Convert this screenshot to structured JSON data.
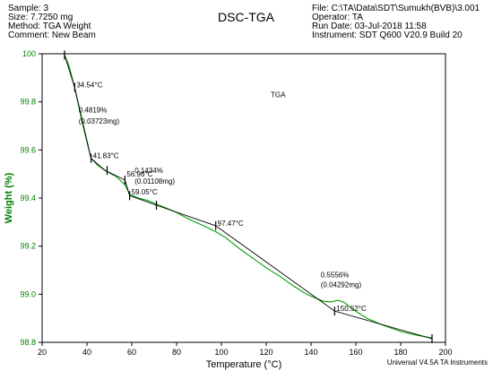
{
  "header": {
    "left": [
      "Sample: 3",
      "Size:  7.7250 mg",
      "Method: TGA Weight",
      "Comment: New Beam"
    ],
    "title": "DSC-TGA",
    "right": [
      "File: C:\\TA\\Data\\SDT\\Sumukh(BVB)\\3.001",
      "Operator: TA",
      "Run Date: 03-Jul-2018 11:58",
      "Instrument: SDT Q600 V20.9 Build 20"
    ]
  },
  "footer": "Universal V4.5A TA Instruments",
  "colors": {
    "axis_label": "#008000",
    "curve": "#00a000",
    "fit_line": "#000000"
  },
  "chart_data": {
    "type": "line",
    "title": "",
    "xlabel": "Temperature (°C)",
    "ylabel": "Weight (%)",
    "xlim": [
      20,
      200
    ],
    "ylim": [
      98.8,
      100
    ],
    "xticks": [
      "20",
      "40",
      "60",
      "80",
      "100",
      "120",
      "140",
      "160",
      "180",
      "200"
    ],
    "yticks": [
      "98.8",
      "99.0",
      "99.2",
      "99.4",
      "99.6",
      "99.8",
      "100"
    ],
    "grid": false,
    "legend": "none",
    "series": [
      {
        "name": "TGA",
        "x": [
          30.0,
          32.0,
          34.5,
          38.0,
          41.8,
          45.0,
          49.0,
          53.0,
          57.0,
          59.1,
          63.0,
          67.0,
          71.0,
          75.0,
          80.0,
          86.0,
          92.0,
          97.5,
          102.0,
          108.0,
          114.0,
          120.0,
          126.0,
          132.0,
          138.0,
          143.0,
          146.0,
          149.0,
          152.0,
          155.0,
          159.0,
          165.0,
          172.0,
          180.0,
          187.0,
          194.0
        ],
        "y": [
          99.995,
          99.95,
          99.86,
          99.71,
          99.565,
          99.535,
          99.51,
          99.49,
          99.455,
          99.415,
          99.4,
          99.39,
          99.375,
          99.36,
          99.34,
          99.31,
          99.285,
          99.26,
          99.235,
          99.19,
          99.15,
          99.11,
          99.075,
          99.035,
          99.0,
          98.98,
          98.97,
          98.968,
          98.975,
          98.965,
          98.935,
          98.9,
          98.872,
          98.845,
          98.83,
          98.818
        ]
      }
    ],
    "annotations": [
      {
        "text": "TGA",
        "x": 122,
        "y": 99.82
      },
      {
        "text": "34.54°C",
        "x": 34.54,
        "y": 99.86
      },
      {
        "text": "0.4819%",
        "x": 35.5,
        "y": 99.755
      },
      {
        "text": "(0.03723mg)",
        "x": 35.5,
        "y": 99.71
      },
      {
        "text": "41.83°C",
        "x": 41.83,
        "y": 99.565
      },
      {
        "text": "56.96°C",
        "x": 56.96,
        "y": 99.49
      },
      {
        "text": "0.1434%",
        "x": 60.5,
        "y": 99.505
      },
      {
        "text": "(0.01108mg)",
        "x": 60.5,
        "y": 99.46
      },
      {
        "text": "59.05°C",
        "x": 59.05,
        "y": 99.415
      },
      {
        "text": "97.47°C",
        "x": 97.47,
        "y": 99.285
      },
      {
        "text": "0.5556%",
        "x": 143.5,
        "y": 99.07
      },
      {
        "text": "(0.04292mg)",
        "x": 143.5,
        "y": 99.03
      },
      {
        "text": "150.52°C",
        "x": 150.52,
        "y": 98.93
      }
    ],
    "step_lines": [
      {
        "x": [
          30.0,
          34.54,
          41.83
        ],
        "y": [
          99.995,
          99.86,
          99.565
        ]
      },
      {
        "x": [
          41.83,
          48.0,
          56.96,
          59.05,
          71.0
        ],
        "y": [
          99.565,
          99.515,
          99.475,
          99.41,
          99.37
        ]
      },
      {
        "x": [
          71.0,
          97.47,
          150.52,
          194.0
        ],
        "y": [
          99.37,
          99.285,
          98.93,
          98.815
        ]
      }
    ],
    "markers": [
      {
        "x": 30.0,
        "y": 99.995
      },
      {
        "x": 34.54,
        "y": 99.86
      },
      {
        "x": 41.83,
        "y": 99.565
      },
      {
        "x": 49.0,
        "y": 99.515
      },
      {
        "x": 56.96,
        "y": 99.475
      },
      {
        "x": 59.05,
        "y": 99.41
      },
      {
        "x": 71.0,
        "y": 99.37
      },
      {
        "x": 97.47,
        "y": 99.285
      },
      {
        "x": 150.52,
        "y": 98.93
      },
      {
        "x": 194.0,
        "y": 98.815
      }
    ]
  }
}
